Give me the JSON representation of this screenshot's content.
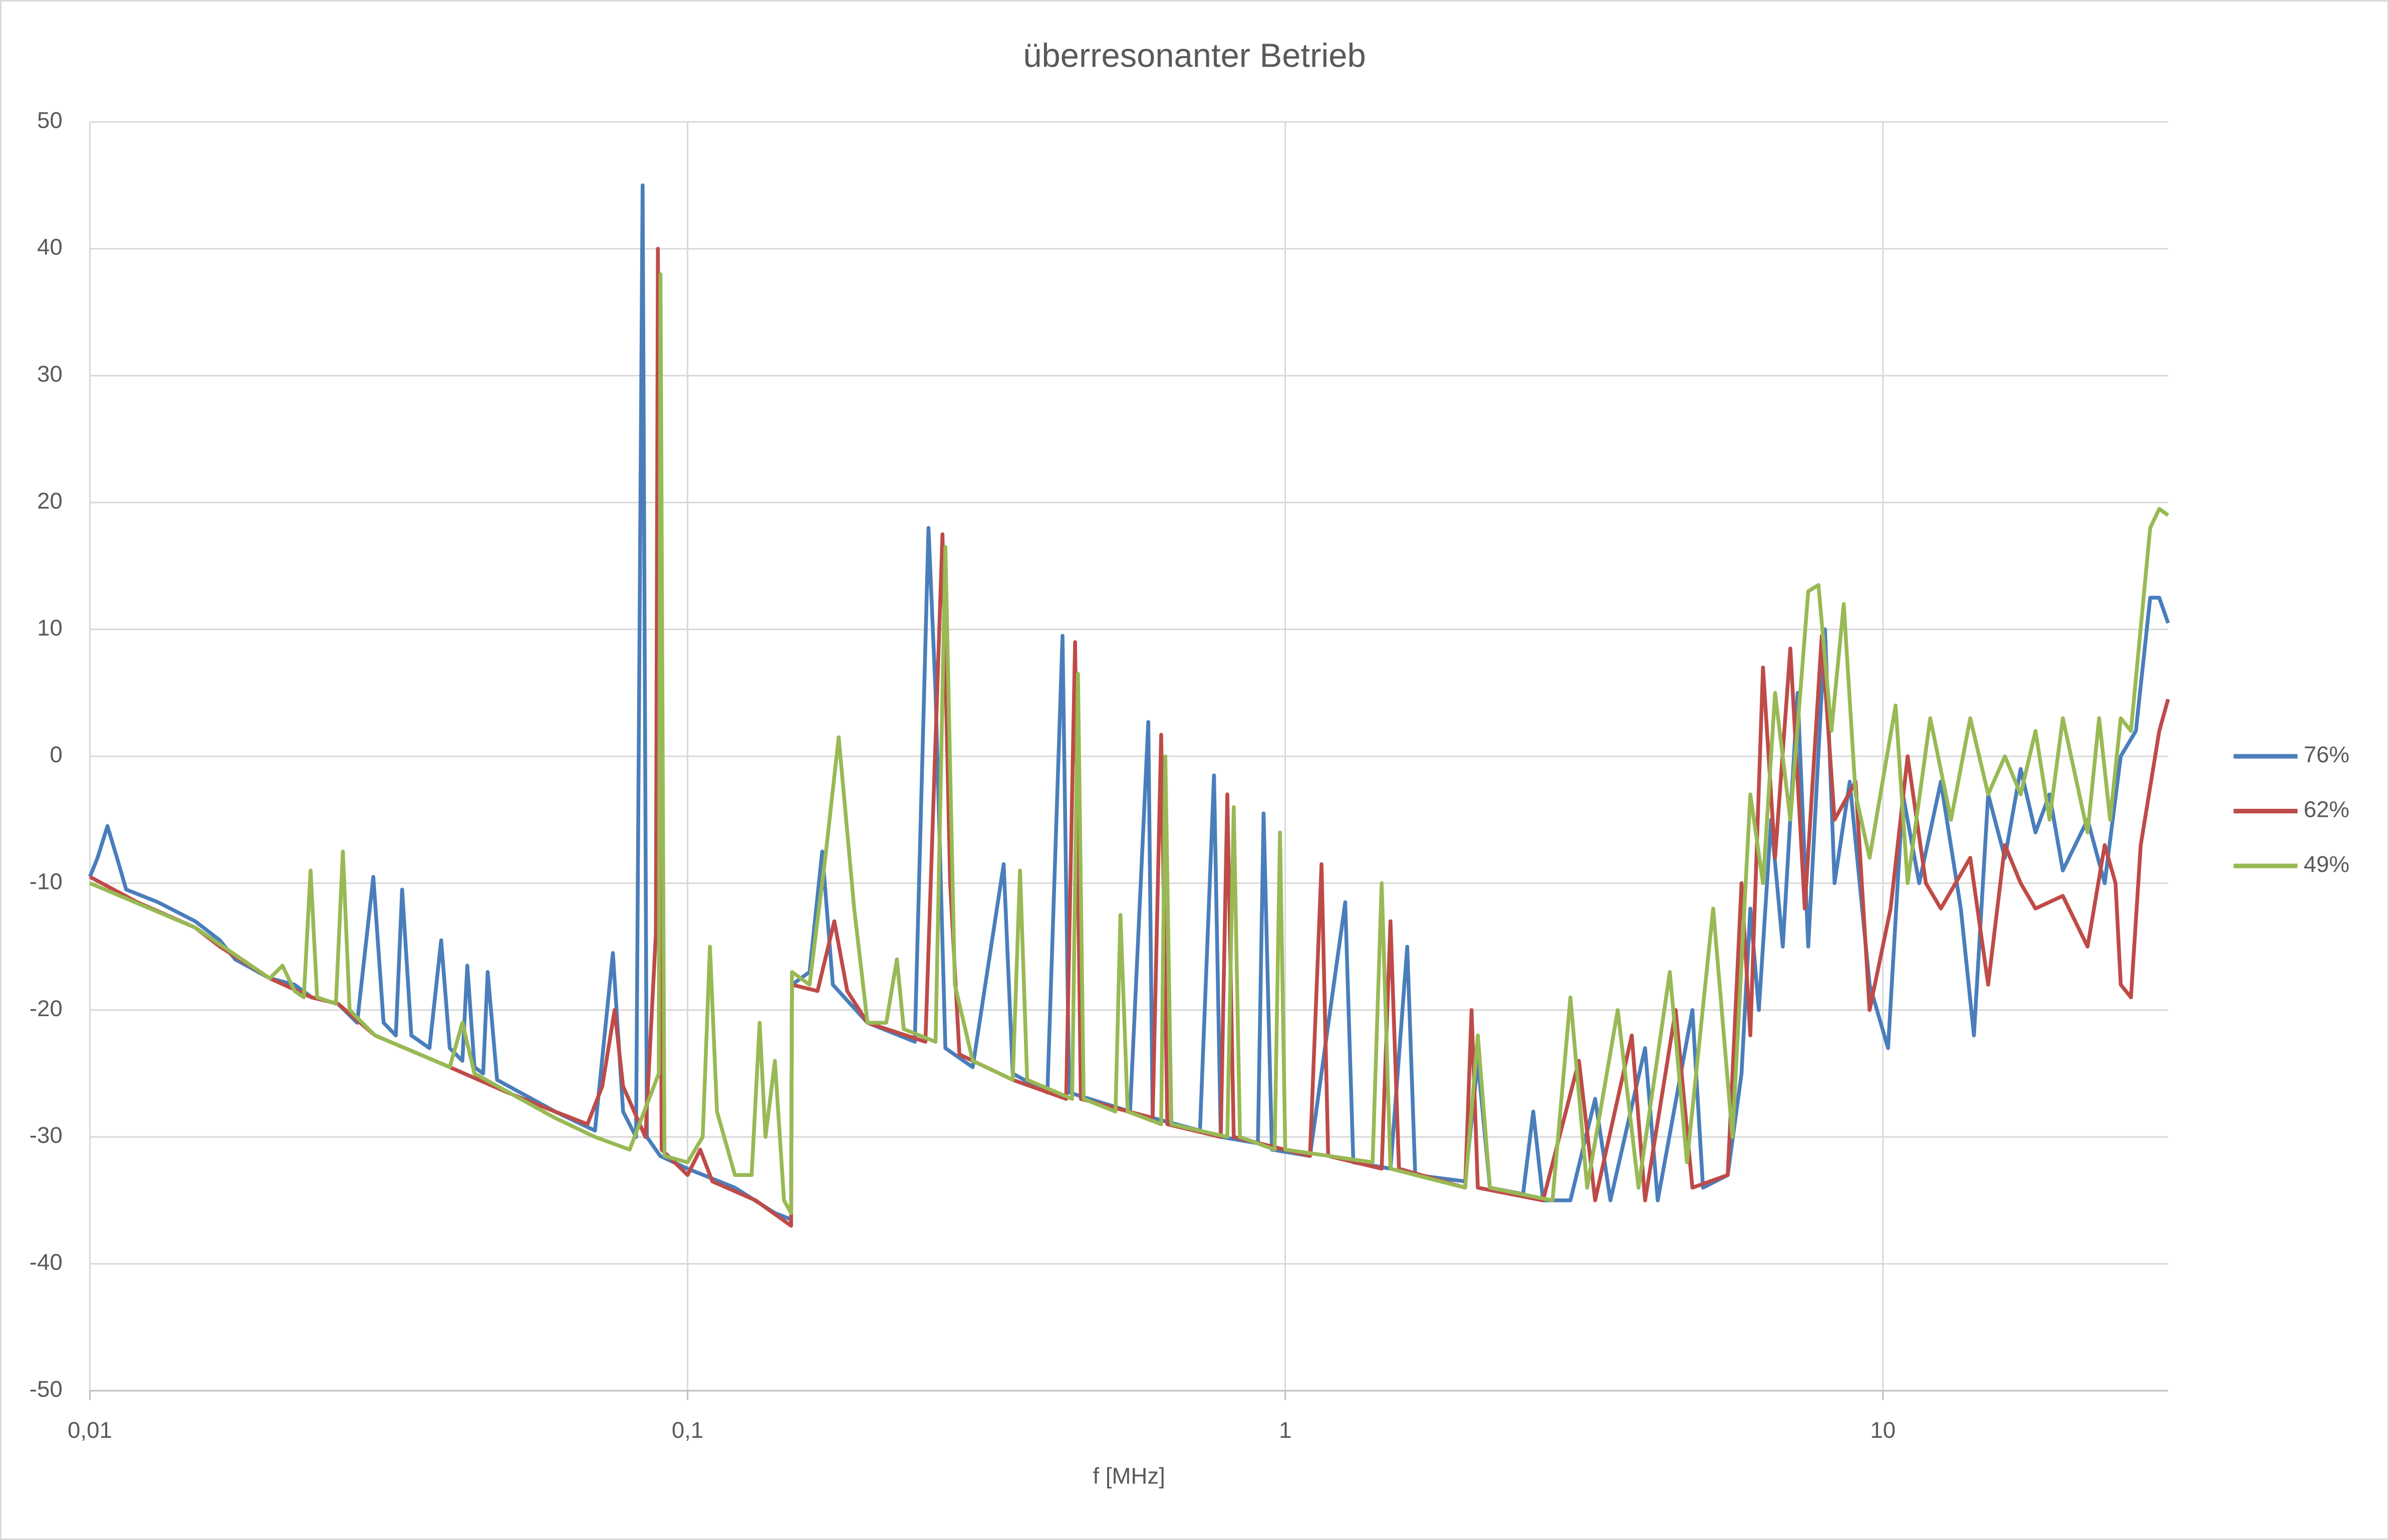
{
  "chart_data": {
    "type": "line",
    "title": "überresonanter Betrieb",
    "x_label": "f [MHz]",
    "xscale": "log",
    "xlim": [
      0.01,
      30
    ],
    "ylim": [
      -50,
      50
    ],
    "xticks": [
      {
        "value": 0.01,
        "label": "0,01"
      },
      {
        "value": 0.1,
        "label": "0,1"
      },
      1,
      10
    ],
    "yticks": [
      -50,
      -40,
      -30,
      -20,
      -10,
      0,
      10,
      20,
      30,
      40,
      50
    ],
    "grid": true,
    "legend": "right",
    "series": [
      {
        "name": "76%",
        "color": "#4a7ebb",
        "x": [
          0.01,
          0.0103,
          0.0107,
          0.0111,
          0.0115,
          0.013,
          0.015,
          0.0165,
          0.0175,
          0.02,
          0.022,
          0.0235,
          0.026,
          0.028,
          0.0298,
          0.031,
          0.0325,
          0.0333,
          0.0345,
          0.037,
          0.0387,
          0.04,
          0.042,
          0.0428,
          0.044,
          0.0455,
          0.0463,
          0.048,
          0.06,
          0.07,
          0.075,
          0.078,
          0.082,
          0.0841,
          0.0855,
          0.09,
          0.1,
          0.12,
          0.14,
          0.149,
          0.1495,
          0.16,
          0.168,
          0.175,
          0.2,
          0.24,
          0.253,
          0.26,
          0.27,
          0.3,
          0.338,
          0.35,
          0.4,
          0.424,
          0.435,
          0.55,
          0.59,
          0.6,
          0.72,
          0.76,
          0.78,
          0.9,
          0.92,
          0.95,
          1.1,
          1.26,
          1.3,
          1.5,
          1.6,
          1.65,
          2.0,
          2.1,
          2.2,
          2.5,
          2.6,
          2.7,
          3.0,
          3.3,
          3.5,
          4.0,
          4.2,
          4.8,
          5.0,
          5.5,
          5.8,
          6.0,
          6.2,
          6.5,
          6.8,
          7.2,
          7.5,
          8.0,
          8.3,
          8.8,
          9.5,
          10.2,
          10.8,
          11.5,
          12.5,
          13.5,
          14.2,
          15,
          16,
          17,
          18,
          19,
          20,
          22,
          23.5,
          25,
          26.5,
          28,
          29,
          30
        ],
        "values": [
          -9.5,
          -8,
          -5.5,
          -8,
          -10.5,
          -11.5,
          -13,
          -14.5,
          -16,
          -17.5,
          -18,
          -19,
          -19.5,
          -21,
          -9.5,
          -21,
          -22,
          -10.5,
          -22,
          -23,
          -14.5,
          -23,
          -24,
          -16.5,
          -24.5,
          -25,
          -17,
          -25.5,
          -28,
          -29.5,
          -15.5,
          -28,
          -30,
          45,
          -30,
          -31.5,
          -32.5,
          -34,
          -36,
          -36.5,
          -18,
          -17,
          -7.5,
          -18,
          -21,
          -22.5,
          18,
          5,
          -23,
          -24.5,
          -8.5,
          -25,
          -26.5,
          9.5,
          -26.5,
          -28,
          2.7,
          -28.5,
          -29.5,
          -1.5,
          -30,
          -30.5,
          -4.5,
          -31,
          -31.5,
          -11.5,
          -32,
          -32.5,
          -15,
          -33,
          -33.5,
          -24,
          -34,
          -34.5,
          -28,
          -35,
          -35,
          -27,
          -35,
          -23,
          -35,
          -20,
          -34,
          -33,
          -25,
          -12,
          -20,
          -5,
          -15,
          5,
          -15,
          10,
          -10,
          -2,
          -18,
          -23,
          -3,
          -10,
          -2,
          -12,
          -22,
          -3,
          -8,
          -1,
          -6,
          -3,
          -9,
          -5,
          -10,
          0,
          2,
          12.5,
          12.5,
          10.5
        ]
      },
      {
        "name": "62%",
        "color": "#be4b48",
        "x": [
          0.01,
          0.012,
          0.015,
          0.0165,
          0.02,
          0.0235,
          0.026,
          0.03,
          0.04,
          0.05,
          0.06,
          0.068,
          0.072,
          0.0755,
          0.078,
          0.085,
          0.0885,
          0.0892,
          0.0905,
          0.1,
          0.105,
          0.11,
          0.13,
          0.149,
          0.1495,
          0.165,
          0.176,
          0.185,
          0.2,
          0.25,
          0.267,
          0.275,
          0.285,
          0.35,
          0.43,
          0.445,
          0.455,
          0.6,
          0.62,
          0.635,
          0.78,
          0.8,
          0.82,
          1.1,
          1.15,
          1.18,
          1.45,
          1.5,
          1.55,
          2.0,
          2.05,
          2.1,
          2.7,
          3.1,
          3.3,
          3.8,
          4.0,
          4.5,
          4.8,
          5.5,
          5.8,
          6.0,
          6.3,
          6.6,
          7.0,
          7.4,
          7.9,
          8.3,
          9.0,
          9.5,
          10.3,
          11,
          11.8,
          12.5,
          14,
          15,
          16,
          17,
          18,
          20,
          22,
          23.5,
          24.5,
          25,
          26,
          27,
          29,
          30
        ],
        "values": [
          -9.5,
          -11.5,
          -13.5,
          -15,
          -17.5,
          -19,
          -19.5,
          -22,
          -24.5,
          -26.5,
          -28,
          -29,
          -26,
          -20,
          -26,
          -30,
          -14,
          40,
          -31,
          -33,
          -31,
          -33.5,
          -35,
          -37,
          -18,
          -18.5,
          -13,
          -18.5,
          -21,
          -22.5,
          17.5,
          -10,
          -23.5,
          -25.5,
          -27,
          9,
          -27,
          -28.5,
          1.7,
          -29,
          -30,
          -3,
          -30,
          -31.5,
          -8.5,
          -31.5,
          -32.5,
          -13,
          -32.5,
          -34,
          -20,
          -34,
          -35,
          -24,
          -35,
          -22,
          -35,
          -20,
          -34,
          -33,
          -10,
          -22,
          7,
          -8,
          8.5,
          -12,
          9.5,
          -5,
          -2,
          -20,
          -12,
          0,
          -10,
          -12,
          -8,
          -18,
          -7,
          -10,
          -12,
          -11,
          -15,
          -7,
          -10,
          -18,
          -19,
          -7,
          2,
          4.5
        ]
      },
      {
        "name": "49%",
        "color": "#98b954",
        "x": [
          0.01,
          0.015,
          0.02,
          0.021,
          0.022,
          0.0228,
          0.0234,
          0.024,
          0.0258,
          0.0265,
          0.0272,
          0.03,
          0.04,
          0.042,
          0.044,
          0.06,
          0.07,
          0.08,
          0.0895,
          0.0901,
          0.0915,
          0.1,
          0.106,
          0.109,
          0.112,
          0.12,
          0.128,
          0.132,
          0.135,
          0.14,
          0.145,
          0.149,
          0.1495,
          0.16,
          0.17,
          0.179,
          0.19,
          0.2,
          0.215,
          0.224,
          0.23,
          0.26,
          0.27,
          0.28,
          0.3,
          0.35,
          0.36,
          0.37,
          0.44,
          0.45,
          0.46,
          0.52,
          0.53,
          0.545,
          0.62,
          0.63,
          0.645,
          0.8,
          0.82,
          0.84,
          0.96,
          0.98,
          1.0,
          1.4,
          1.45,
          1.5,
          2.0,
          2.1,
          2.2,
          2.8,
          3.0,
          3.2,
          3.6,
          3.9,
          4.4,
          4.7,
          5.2,
          5.6,
          6.0,
          6.3,
          6.6,
          7.0,
          7.5,
          7.8,
          8.2,
          8.6,
          9.0,
          9.5,
          10.5,
          11,
          12,
          13,
          14,
          15,
          16,
          17,
          18,
          19,
          20,
          22,
          23,
          24,
          25,
          26,
          28,
          29,
          30
        ],
        "values": [
          -10,
          -13.5,
          -17.5,
          -16.5,
          -18.5,
          -19,
          -9,
          -19,
          -19.5,
          -7.5,
          -20,
          -22,
          -24.5,
          -21,
          -25,
          -28.5,
          -30,
          -31,
          -25,
          38,
          -31.5,
          -32,
          -30,
          -15,
          -28,
          -33,
          -33,
          -21,
          -30,
          -24,
          -35,
          -36,
          -17,
          -18,
          -8,
          1.5,
          -12,
          -21,
          -21,
          -16,
          -21.5,
          -22.5,
          16.5,
          -18,
          -24,
          -25.5,
          -9,
          -25.5,
          -27,
          6.5,
          -27,
          -28,
          -12.5,
          -28,
          -29,
          0,
          -29,
          -30,
          -4,
          -30,
          -31,
          -6,
          -31,
          -32,
          -10,
          -32.5,
          -34,
          -22,
          -34,
          -35,
          -19,
          -34,
          -20,
          -34,
          -17,
          -32,
          -12,
          -30,
          -3,
          -10,
          5,
          -5,
          13,
          13.5,
          2,
          12,
          -3,
          -8,
          4,
          -10,
          3,
          -5,
          3,
          -3,
          0,
          -3,
          2,
          -5,
          3,
          -6,
          3,
          -5,
          3,
          2,
          18,
          19.5,
          19
        ]
      }
    ]
  }
}
